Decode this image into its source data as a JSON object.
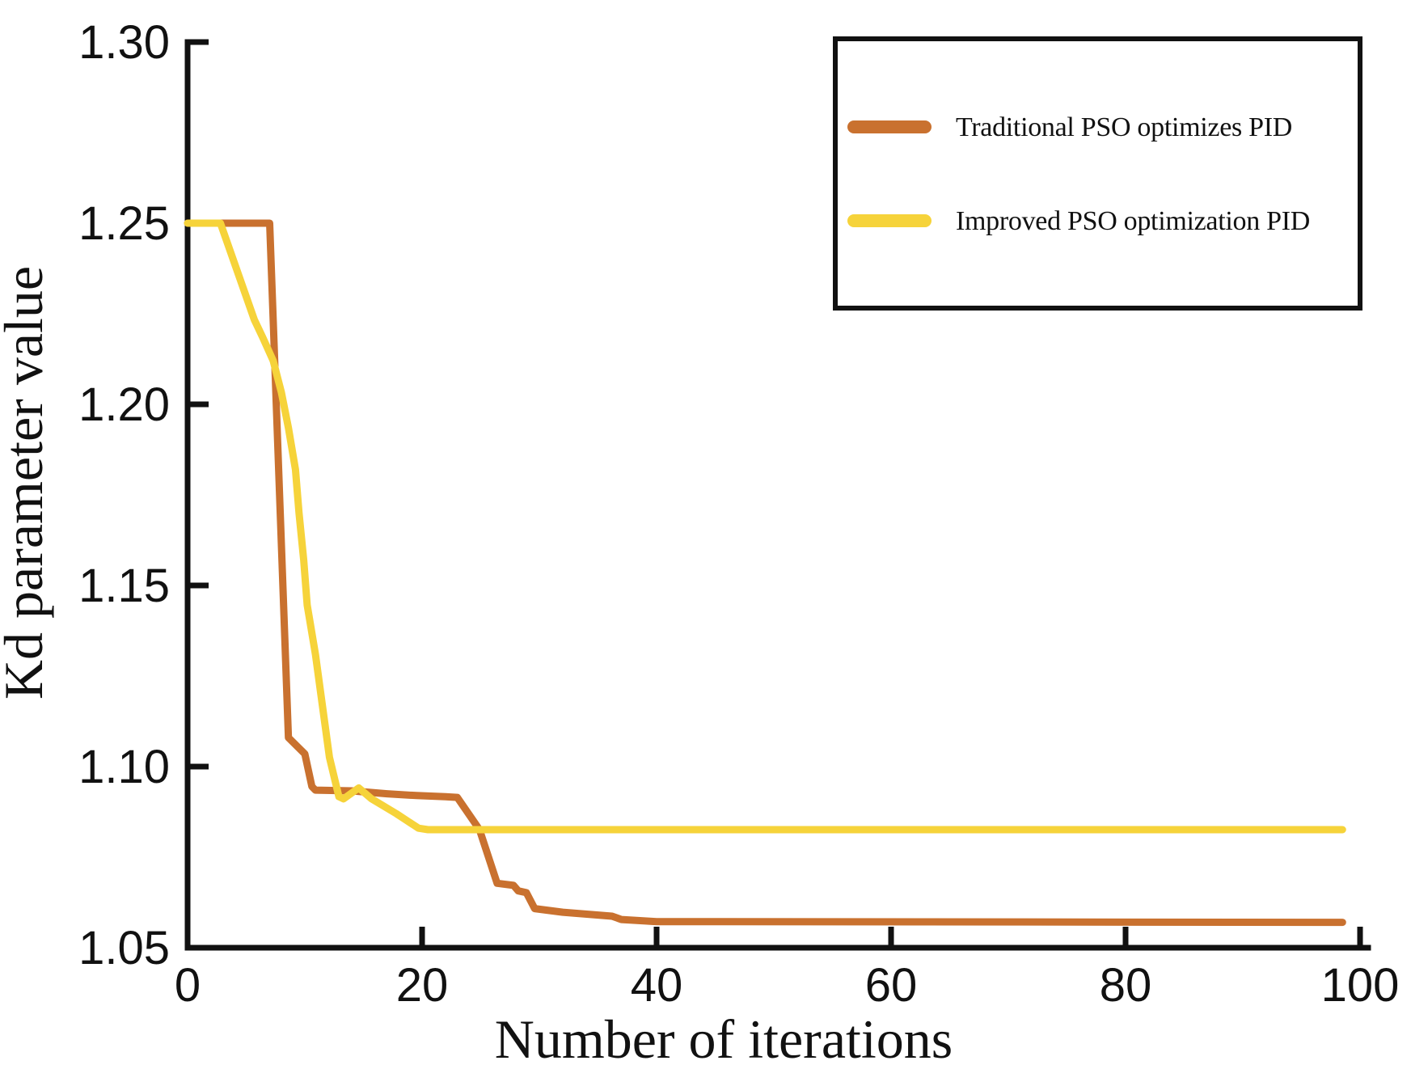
{
  "chart_data": {
    "type": "line",
    "title": "",
    "xlabel": "Number of iterations",
    "ylabel": "Kd parameter value",
    "xlim": [
      0,
      100
    ],
    "ylim": [
      1.05,
      1.3
    ],
    "grid": false,
    "xticks": {
      "values": [
        0,
        20,
        40,
        60,
        80,
        100
      ],
      "labels": [
        "0",
        "20",
        "40",
        "60",
        "80",
        "100"
      ]
    },
    "yticks": {
      "values": [
        1.05,
        1.1,
        1.15,
        1.2,
        1.25,
        1.3
      ],
      "labels": [
        "1.05",
        "1.10",
        "1.15",
        "1.20",
        "1.25",
        "1.30"
      ]
    },
    "legend": {
      "position": "top-right",
      "border": true
    },
    "axis_color": "#111111",
    "series": [
      {
        "name": "Traditional PSO optimizes PID",
        "color": "#C9712F",
        "points": [
          [
            0,
            1.25
          ],
          [
            7,
            1.25
          ],
          [
            8.6,
            1.108
          ],
          [
            10,
            1.1035
          ],
          [
            10.6,
            1.0945
          ],
          [
            10.9,
            1.0935
          ],
          [
            14,
            1.0933
          ],
          [
            17,
            1.0925
          ],
          [
            19.5,
            1.092
          ],
          [
            22,
            1.0917
          ],
          [
            23,
            1.0915
          ],
          [
            24.9,
            1.0826
          ],
          [
            26.4,
            1.0678
          ],
          [
            27.8,
            1.0672
          ],
          [
            28.2,
            1.0657
          ],
          [
            28.9,
            1.0652
          ],
          [
            29.6,
            1.0608
          ],
          [
            32,
            1.0598
          ],
          [
            36.2,
            1.0587
          ],
          [
            37,
            1.0578
          ],
          [
            40,
            1.0572
          ],
          [
            98.5,
            1.057
          ]
        ]
      },
      {
        "name": "Improved PSO optimization PID",
        "color": "#F6D33A",
        "points": [
          [
            0,
            1.25
          ],
          [
            2.8,
            1.25
          ],
          [
            5.7,
            1.2233
          ],
          [
            6.4,
            1.2185
          ],
          [
            7.3,
            1.212
          ],
          [
            8,
            1.2033
          ],
          [
            8.6,
            1.1935
          ],
          [
            9.2,
            1.182
          ],
          [
            9.5,
            1.17
          ],
          [
            9.9,
            1.157
          ],
          [
            10.2,
            1.1446
          ],
          [
            10.9,
            1.131
          ],
          [
            12.1,
            1.1026
          ],
          [
            12.9,
            1.0917
          ],
          [
            13.3,
            1.0911
          ],
          [
            14.6,
            1.0941
          ],
          [
            15.7,
            1.0911
          ],
          [
            17.8,
            1.087
          ],
          [
            19.7,
            1.083
          ],
          [
            20.5,
            1.0826
          ],
          [
            98.5,
            1.0826
          ]
        ]
      }
    ]
  }
}
